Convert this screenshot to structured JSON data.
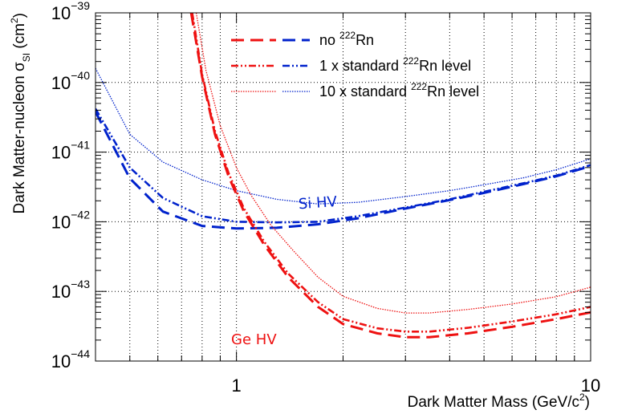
{
  "chart_data": {
    "type": "line",
    "x_scale": "log",
    "y_scale": "log",
    "xlim": [
      0.4,
      10
    ],
    "ylim": [
      1e-44,
      1e-39
    ],
    "xlabel": "Dark Matter Mass (GeV/c",
    "xlabel_sup": "2",
    "xlabel_end": ")",
    "ylabel": "Dark Matter-nucleon σ",
    "ylabel_sub": "SI",
    "ylabel_unit": " (cm",
    "ylabel_unit_sup": "2",
    "ylabel_end": ")",
    "x_ticks": [
      {
        "value": 1,
        "label": "1"
      },
      {
        "value": 10,
        "label": "10"
      }
    ],
    "y_ticks": [
      {
        "value": 1e-39,
        "base": "10",
        "exp": "−39"
      },
      {
        "value": 1e-40,
        "base": "10",
        "exp": "−40"
      },
      {
        "value": 1e-41,
        "base": "10",
        "exp": "−41"
      },
      {
        "value": 1e-42,
        "base": "10",
        "exp": "−42"
      },
      {
        "value": 1e-43,
        "base": "10",
        "exp": "−43"
      },
      {
        "value": 1e-44,
        "base": "10",
        "exp": "−44"
      }
    ],
    "grid": true,
    "legend": {
      "position": "top-right",
      "entries": [
        {
          "text": "no ",
          "sup": "222",
          "text_end": "Rn",
          "style": "dashed"
        },
        {
          "text": "1 x standard ",
          "sup": "222",
          "text_end": "Rn level",
          "style": "dashdot"
        },
        {
          "text": "10 x standard ",
          "sup": "222",
          "text_end": "Rn level",
          "style": "dotted"
        }
      ]
    },
    "annotations": [
      {
        "text": "Si HV",
        "color": "#0022cc",
        "x": 1.7,
        "y": 1.6e-42,
        "rotation": -4
      },
      {
        "text": "Ge HV",
        "color": "#ee1111",
        "x": 1.12,
        "y": 1.75e-44,
        "rotation": 0
      }
    ],
    "series": [
      {
        "name": "Si HV, no 222Rn",
        "detector": "Si HV",
        "color": "#0022cc",
        "style": "dashed",
        "width": 3,
        "x": [
          0.4,
          0.5,
          0.62,
          0.8,
          1.0,
          1.3,
          1.7,
          2.2,
          3.0,
          4.0,
          5.0,
          6.5,
          8.0,
          10.0
        ],
        "y": [
          3.8e-41,
          4.2e-42,
          1.4e-42,
          8.7e-43,
          8e-43,
          8.2e-43,
          9.2e-43,
          1.12e-42,
          1.55e-42,
          2.05e-42,
          2.6e-42,
          3.5e-42,
          4.5e-42,
          6.3e-42
        ]
      },
      {
        "name": "Si HV, 1 x standard 222Rn level",
        "detector": "Si HV",
        "color": "#0022cc",
        "style": "dashdot",
        "width": 2.6,
        "x": [
          0.4,
          0.5,
          0.62,
          0.8,
          1.0,
          1.3,
          1.7,
          2.2,
          3.0,
          4.0,
          5.0,
          6.5,
          8.0,
          10.0
        ],
        "y": [
          4.2e-41,
          6e-42,
          2.2e-42,
          1.2e-42,
          1e-42,
          9.8e-43,
          1e-42,
          1.2e-42,
          1.6e-42,
          2.1e-42,
          2.7e-42,
          3.6e-42,
          4.6e-42,
          6.5e-42
        ]
      },
      {
        "name": "Si HV, 10 x standard 222Rn level",
        "detector": "Si HV",
        "color": "#0022cc",
        "style": "dotted",
        "width": 1.3,
        "x": [
          0.4,
          0.5,
          0.62,
          0.8,
          1.0,
          1.3,
          1.7,
          2.2,
          3.0,
          4.0,
          5.0,
          6.5,
          8.0,
          10.0
        ],
        "y": [
          1.6e-40,
          1.8e-41,
          7.2e-42,
          4e-42,
          2.8e-42,
          2.1e-42,
          1.8e-42,
          1.9e-42,
          2.3e-42,
          2.8e-42,
          3.4e-42,
          4.3e-42,
          5.6e-42,
          8e-42
        ]
      },
      {
        "name": "Ge HV, no 222Rn",
        "detector": "Ge HV",
        "color": "#ee1111",
        "style": "dashed",
        "width": 3,
        "x": [
          0.745,
          0.8,
          0.87,
          0.95,
          1.05,
          1.2,
          1.4,
          1.7,
          2.0,
          2.5,
          3.0,
          3.5,
          4.5,
          6.0,
          8.0,
          10.0
        ],
        "y": [
          1e-39,
          1.2e-40,
          1.8e-41,
          4.5e-42,
          1.4e-42,
          4.6e-43,
          1.6e-43,
          6e-44,
          3.4e-44,
          2.5e-44,
          2.2e-44,
          2.2e-44,
          2.5e-44,
          3.1e-44,
          4e-44,
          5e-44
        ]
      },
      {
        "name": "Ge HV, 1 x standard 222Rn level",
        "detector": "Ge HV",
        "color": "#ee1111",
        "style": "dashdot",
        "width": 2.6,
        "x": [
          0.75,
          0.8,
          0.87,
          0.95,
          1.05,
          1.2,
          1.4,
          1.7,
          2.0,
          2.5,
          3.0,
          3.5,
          4.5,
          6.0,
          8.0,
          10.0
        ],
        "y": [
          1e-39,
          1.3e-40,
          2e-41,
          5e-42,
          1.55e-42,
          5.1e-43,
          1.8e-43,
          7e-44,
          4e-44,
          2.95e-44,
          2.65e-44,
          2.65e-44,
          3e-44,
          3.7e-44,
          4.7e-44,
          6e-44
        ]
      },
      {
        "name": "Ge HV, 10 x standard 222Rn level",
        "detector": "Ge HV",
        "color": "#ee1111",
        "style": "dotted",
        "width": 1.3,
        "x": [
          0.77,
          0.82,
          0.9,
          1.0,
          1.1,
          1.25,
          1.45,
          1.7,
          2.0,
          2.5,
          3.0,
          3.5,
          4.5,
          6.0,
          8.0,
          10.0
        ],
        "y": [
          1e-39,
          1.5e-40,
          2.4e-41,
          6e-42,
          2.4e-42,
          9e-43,
          3.8e-43,
          1.6e-43,
          8.5e-44,
          5.7e-44,
          4.9e-44,
          4.9e-44,
          5.5e-44,
          6.6e-44,
          8.4e-44,
          1.15e-43
        ]
      }
    ]
  }
}
